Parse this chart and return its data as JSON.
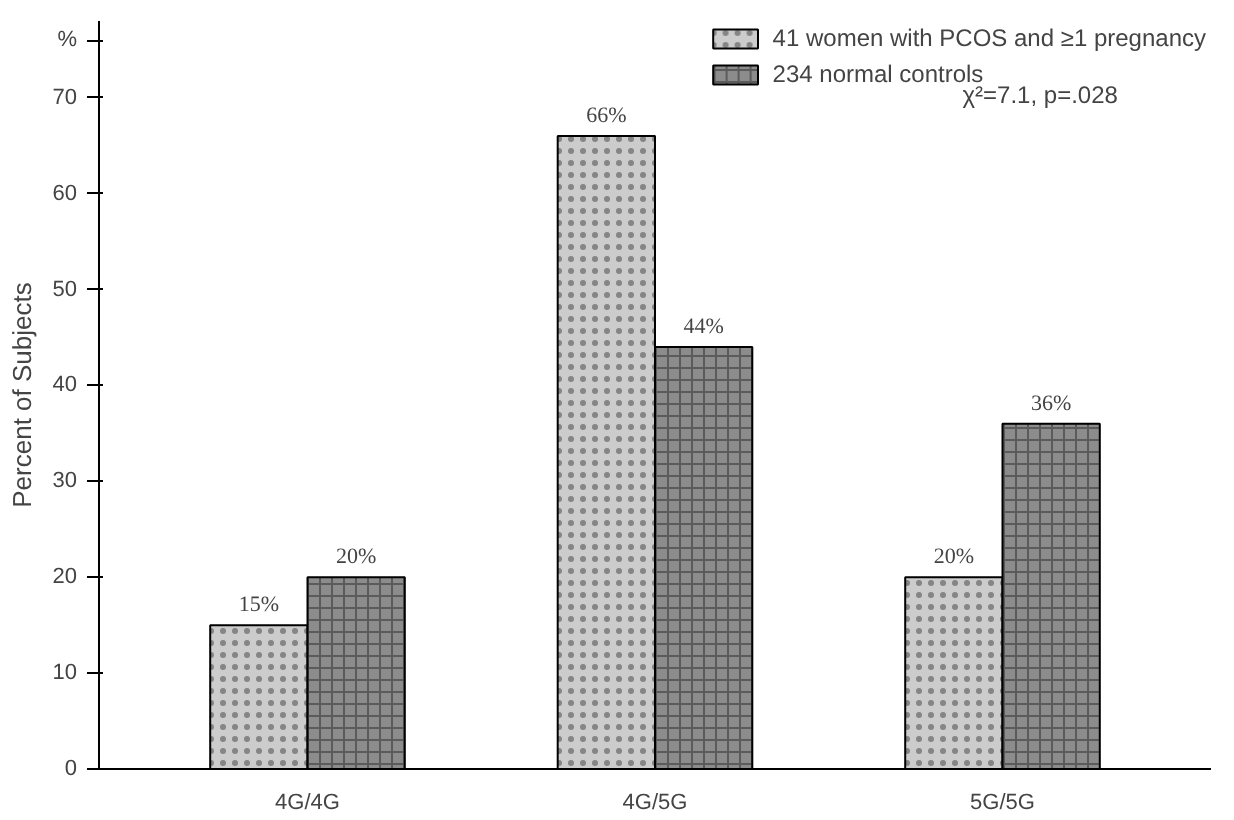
{
  "chart_data": {
    "type": "bar",
    "ylabel": "Percent of Subjects",
    "categories": [
      "4G/4G",
      "4G/5G",
      "5G/5G"
    ],
    "series": [
      {
        "name": "41 women with PCOS and ≥1 pregnancy",
        "color": "#cccccc",
        "values": [
          15,
          66,
          20
        ],
        "value_labels": [
          "15%",
          "66%",
          "20%"
        ]
      },
      {
        "name": "234 normal controls",
        "color": "#8c8c8c",
        "values": [
          20,
          44,
          36
        ],
        "value_labels": [
          "20%",
          "44%",
          "36%"
        ]
      }
    ],
    "ylim": [
      0,
      78
    ],
    "yticks": [
      0,
      10,
      20,
      30,
      40,
      50,
      60,
      70,
      {
        "value": 76,
        "label": "%"
      }
    ],
    "annotations": [
      "χ²=7.1,  p=.028"
    ],
    "legend": "top right",
    "grid": false
  }
}
